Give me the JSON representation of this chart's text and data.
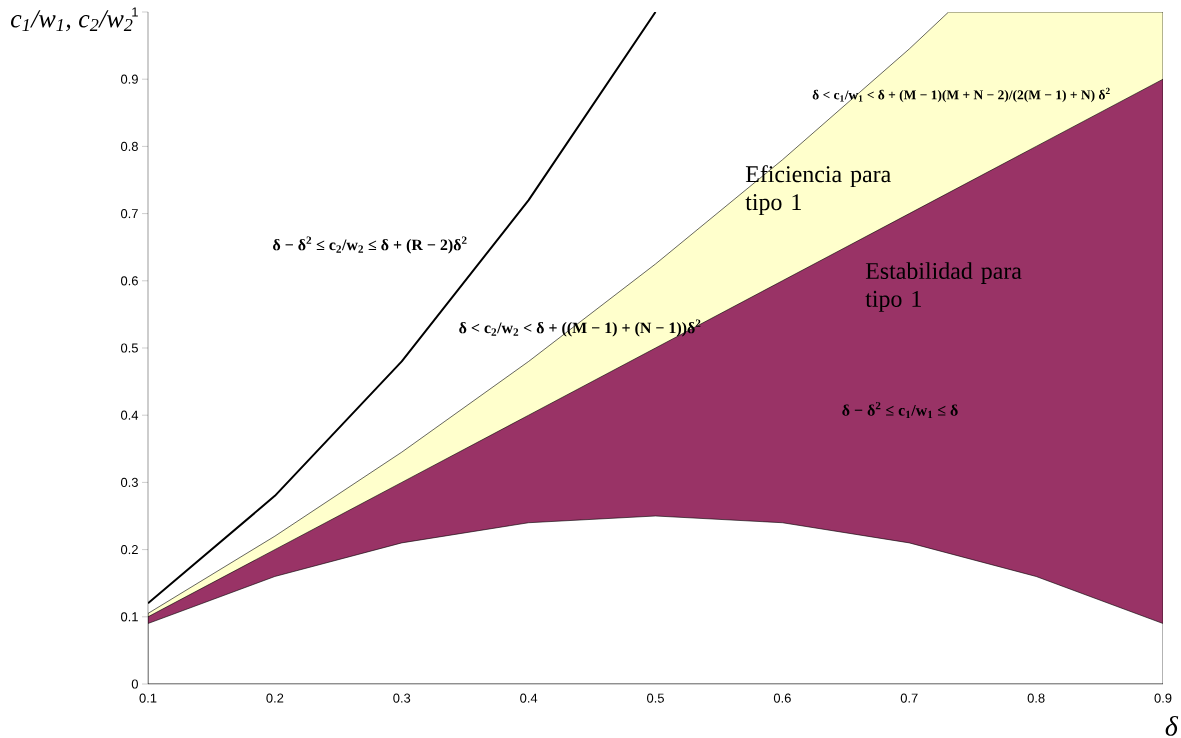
{
  "chart_data": {
    "type": "area",
    "xlabel": "δ",
    "ylabel": "c$_{1}$/w$_{1}$, c$_{2}$/w$_{2}$",
    "x": [
      0.1,
      0.2,
      0.3,
      0.4,
      0.5,
      0.6,
      0.7,
      0.8,
      0.9
    ],
    "series": [
      {
        "color": "#ffffcc",
        "x": [
          0.1,
          0.2,
          0.3,
          0.4,
          0.5,
          0.6,
          0.7,
          0.731,
          0.8,
          0.9
        ],
        "values": [
          0.105,
          0.22,
          0.345,
          0.48,
          0.625,
          0.78,
          0.945,
          1,
          1,
          1
        ]
      },
      {
        "color": "#993366",
        "values": [
          0.1,
          0.2,
          0.3,
          0.4,
          0.5,
          0.6,
          0.7,
          0.8,
          0.9
        ]
      },
      {
        "color": "#ffffff",
        "values": [
          0.09,
          0.16,
          0.21,
          0.24,
          0.25,
          0.24,
          0.21,
          0.16,
          0.09
        ]
      },
      {
        "type": "line",
        "color": "#000000",
        "values": [
          0.12,
          0.28,
          0.48,
          0.72,
          1.0,
          null,
          null,
          null,
          null
        ]
      }
    ],
    "xlim": [
      0.1,
      0.9
    ],
    "ylim": [
      0,
      1
    ],
    "xticks": [
      0.1,
      0.2,
      0.3,
      0.4,
      0.5,
      0.6,
      0.7,
      0.8,
      0.9
    ],
    "yticks": [
      0,
      0.1,
      0.2,
      0.3,
      0.4,
      0.5,
      0.6,
      0.7,
      0.8,
      0.9,
      1
    ],
    "annotations": [
      "δ − δ$^{2}$ ≤ c$_{2}$/w$_{2}$ ≤ δ + (R − 2)δ$^{2}$",
      "δ < c$_{2}$/w$_{2}$ < δ + ((M − 1) + (N − 1))δ$^{2}$",
      "δ < c$_{1}$/w$_{1}$ < δ + (M − 1)(M + N − 2)/(2(M − 1) + N) δ$^{2}$",
      "δ − δ$^{2}$ ≤ c$_{1}$/w$_{1}$ ≤ δ",
      "Eficiencia para tipo 1",
      "Estabilidad para tipo 1"
    ],
    "grid": false
  }
}
